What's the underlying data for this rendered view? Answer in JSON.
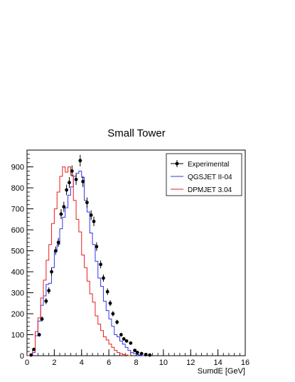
{
  "chart_data": {
    "type": "line",
    "title": "Small Tower",
    "xlabel": "SumdE [GeV]",
    "ylabel": "",
    "xlim": [
      0,
      16
    ],
    "ylim": [
      0,
      980
    ],
    "xticks": [
      0,
      2,
      4,
      6,
      8,
      10,
      12,
      14,
      16
    ],
    "yticks": [
      0,
      100,
      200,
      300,
      400,
      500,
      600,
      700,
      800,
      900
    ],
    "grid": false,
    "legend_position": "top-right",
    "bin_width": 0.2,
    "series": [
      {
        "name": "Experimental",
        "style": "points-with-error-bars",
        "color": "#000000",
        "x": [
          0.3,
          0.5,
          0.9,
          1.1,
          1.4,
          1.6,
          1.8,
          2.1,
          2.3,
          2.5,
          2.7,
          2.9,
          3.1,
          3.3,
          3.6,
          3.9,
          4.1,
          4.4,
          4.7,
          4.9,
          5.1,
          5.4,
          5.6,
          5.9,
          6.1,
          6.3,
          6.6,
          6.9,
          7.1,
          7.3,
          7.6,
          7.9,
          8.1,
          8.4,
          8.7,
          9.0
        ],
        "y": [
          3,
          30,
          100,
          175,
          260,
          310,
          400,
          500,
          540,
          675,
          710,
          790,
          825,
          880,
          840,
          930,
          830,
          730,
          670,
          640,
          520,
          435,
          370,
          305,
          250,
          200,
          160,
          100,
          80,
          70,
          60,
          25,
          15,
          10,
          5,
          3
        ]
      },
      {
        "name": "QGSJET II-04",
        "style": "step",
        "color": "#3333ee",
        "x_start": 0,
        "values": [
          0,
          0,
          15,
          95,
          165,
          240,
          285,
          340,
          345,
          420,
          495,
          530,
          605,
          660,
          705,
          765,
          805,
          855,
          870,
          880,
          850,
          740,
          685,
          585,
          530,
          450,
          370,
          330,
          260,
          215,
          175,
          140,
          100,
          90,
          70,
          55,
          40,
          25,
          15,
          10,
          5,
          3,
          0
        ]
      },
      {
        "name": "DPMJET 3.04",
        "style": "step",
        "color": "#e81c1c",
        "x_start": 0,
        "values": [
          0,
          0,
          25,
          115,
          180,
          275,
          360,
          455,
          530,
          630,
          700,
          780,
          855,
          900,
          875,
          900,
          860,
          740,
          650,
          590,
          480,
          420,
          355,
          295,
          255,
          190,
          150,
          120,
          90,
          75,
          55,
          40,
          25,
          15,
          10,
          5,
          3,
          0
        ]
      }
    ]
  }
}
